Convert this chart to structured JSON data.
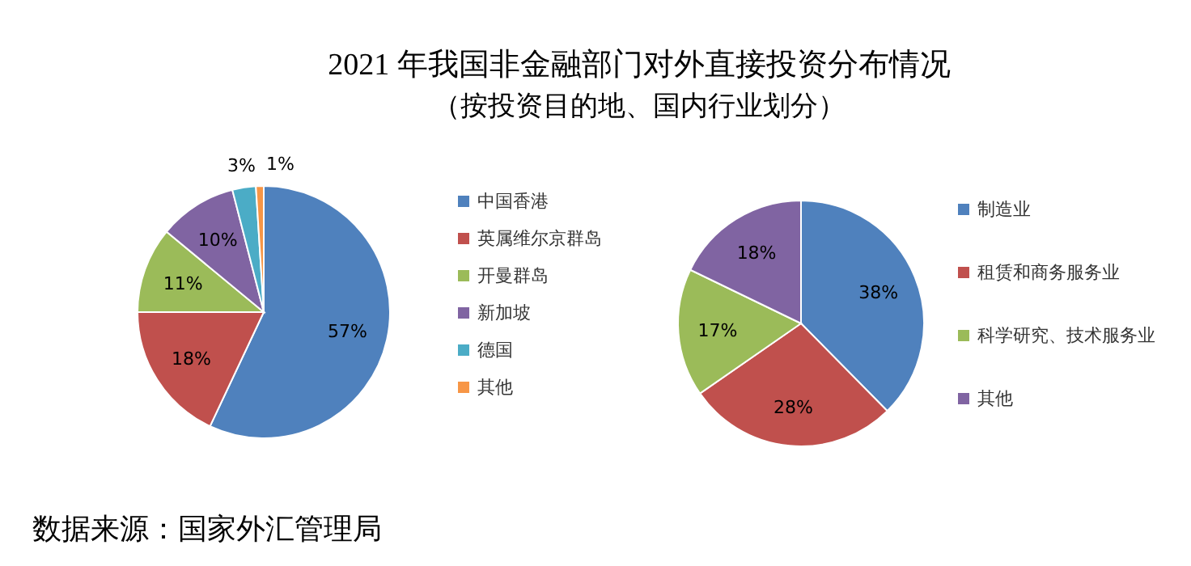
{
  "chart_data": [
    {
      "type": "pie",
      "title": "2021 年我国非金融部门对外直接投资分布情况",
      "subtitle": "（按投资目的地、国内行业划分）",
      "annotations": [
        "数据来源：国家外汇管理局"
      ],
      "legend": "right",
      "categories": [
        "中国香港",
        "英属维尔京群岛",
        "开曼群岛",
        "新加坡",
        "德国",
        "其他"
      ],
      "values": [
        57,
        18,
        11,
        10,
        3,
        1
      ],
      "value_labels": [
        "57%",
        "18%",
        "11%",
        "10%",
        "3%",
        "1%"
      ],
      "colors": [
        "#4f81bd",
        "#c0504d",
        "#9bbb59",
        "#8064a2",
        "#4bacc6",
        "#f79646"
      ]
    },
    {
      "type": "pie",
      "legend": "right",
      "categories": [
        "制造业",
        "租赁和商务服务业",
        "科学研究、技术服务业",
        "其他"
      ],
      "values": [
        38,
        28,
        17,
        18
      ],
      "value_labels": [
        "38%",
        "28%",
        "17%",
        "18%"
      ],
      "colors": [
        "#4f81bd",
        "#c0504d",
        "#9bbb59",
        "#8064a2"
      ]
    }
  ]
}
